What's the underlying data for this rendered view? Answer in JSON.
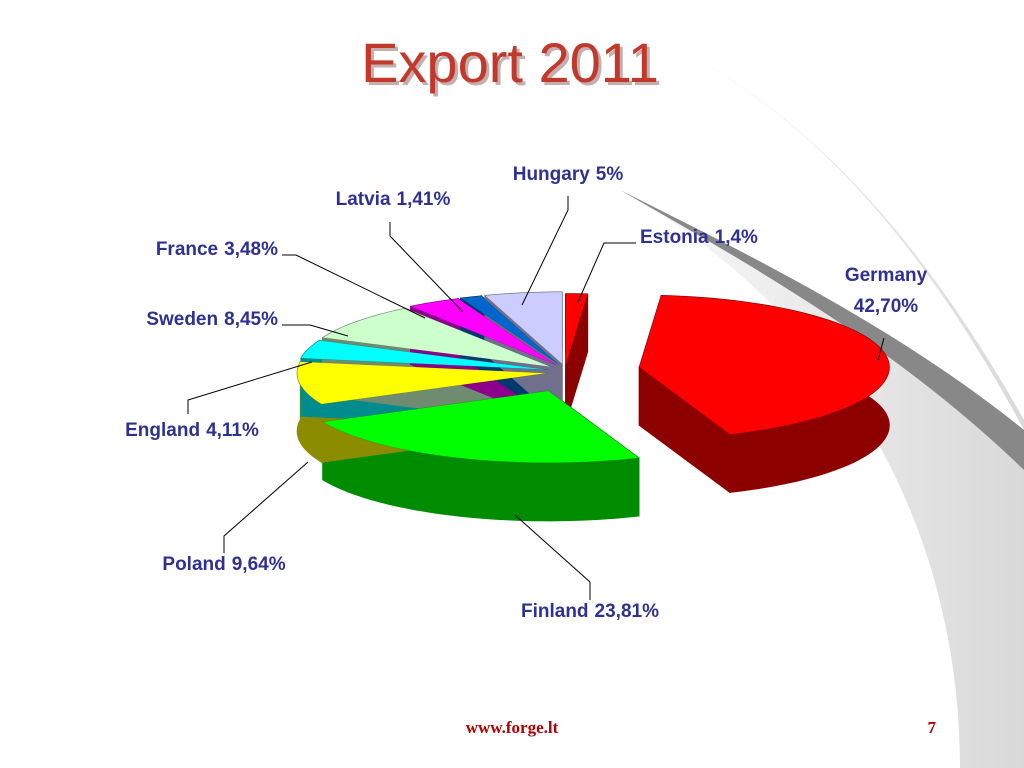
{
  "chart_data": {
    "type": "pie",
    "title": "Export 2011",
    "categories": [
      "Estonia",
      "Germany",
      "Finland",
      "Poland",
      "England",
      "Sweden",
      "France",
      "Latvia",
      "Hungary"
    ],
    "values": [
      1.4,
      42.7,
      23.81,
      9.64,
      4.11,
      8.45,
      3.48,
      1.41,
      5
    ],
    "value_labels": [
      "1,4%",
      "42,70%",
      "23,81%",
      "9,64%",
      "4,11%",
      "8,45%",
      "3,48%",
      "1,41%",
      "5%"
    ],
    "colors": [
      "#ff0000",
      "#ff0000",
      "#00ff00",
      "#ffff00",
      "#00ffff",
      "#ccffcc",
      "#ff00ff",
      "#0066cc",
      "#ccccff"
    ]
  },
  "footer": {
    "url": "www.forge.lt",
    "page": "7"
  }
}
